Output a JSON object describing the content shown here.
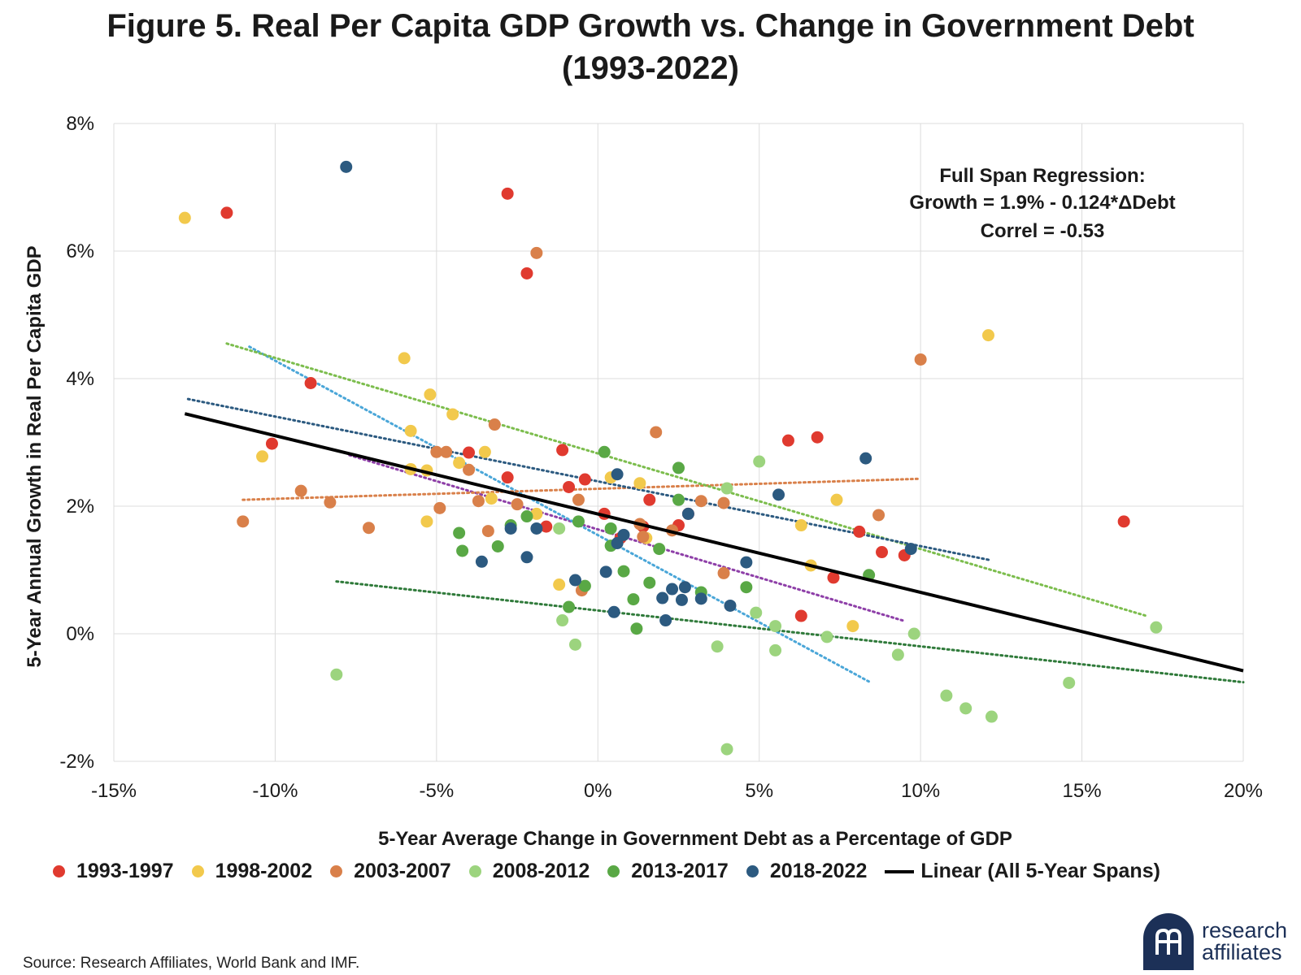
{
  "header": {
    "title_line1": "Figure 5. Real Per Capita GDP Growth vs. Change in Government Debt",
    "title_line2": "(1993-2022)"
  },
  "footer": {
    "source": "Source: Research Affiliates, World Bank and IMF.",
    "logo_line1": "research",
    "logo_line2": "affiliates"
  },
  "chart_data": {
    "type": "scatter",
    "title": "Figure 5. Real Per Capita GDP Growth vs. Change in Government Debt (1993-2022)",
    "xlabel": "5-Year Average Change in Government Debt as a Percentage of GDP",
    "ylabel": "5-Year Annual Growth in Real Per Capita GDP",
    "xlim": [
      -15,
      20
    ],
    "ylim": [
      -2,
      8
    ],
    "x_ticks": [
      -15,
      -10,
      -5,
      0,
      5,
      10,
      15,
      20
    ],
    "y_ticks": [
      -2,
      0,
      2,
      4,
      6,
      8
    ],
    "x_tick_labels": [
      "-15%",
      "-10%",
      "-5%",
      "0%",
      "5%",
      "10%",
      "15%",
      "20%"
    ],
    "y_tick_labels": [
      "-2%",
      "0%",
      "2%",
      "4%",
      "6%",
      "8%"
    ],
    "grid": true,
    "legend_position": "bottom",
    "annotation": {
      "line1": "Full Span Regression:",
      "line2": "Growth = 1.9% - 0.124*ΔDebt",
      "line3": "Correl = -0.53"
    },
    "series": [
      {
        "name": "1993-1997",
        "color": "#e03a2f",
        "points": [
          [
            -11.5,
            6.6
          ],
          [
            -2.8,
            6.9
          ],
          [
            -2.2,
            5.65
          ],
          [
            -8.9,
            3.93
          ],
          [
            -10.1,
            2.98
          ],
          [
            -4.0,
            2.84
          ],
          [
            -1.1,
            2.88
          ],
          [
            -2.8,
            2.45
          ],
          [
            -0.4,
            2.42
          ],
          [
            -0.9,
            2.3
          ],
          [
            1.6,
            2.1
          ],
          [
            0.2,
            1.88
          ],
          [
            1.4,
            1.68
          ],
          [
            2.5,
            1.7
          ],
          [
            2.8,
            1.88
          ],
          [
            -1.6,
            1.68
          ],
          [
            0.7,
            1.5
          ],
          [
            5.9,
            3.03
          ],
          [
            6.8,
            3.08
          ],
          [
            8.1,
            1.6
          ],
          [
            8.8,
            1.28
          ],
          [
            9.5,
            1.23
          ],
          [
            7.3,
            0.88
          ],
          [
            6.3,
            0.28
          ],
          [
            16.3,
            1.76
          ]
        ]
      },
      {
        "name": "1998-2002",
        "color": "#f2c94c",
        "points": [
          [
            -12.8,
            6.52
          ],
          [
            -6.0,
            4.32
          ],
          [
            -5.2,
            3.75
          ],
          [
            -4.5,
            3.44
          ],
          [
            -5.8,
            3.18
          ],
          [
            -3.5,
            2.85
          ],
          [
            -10.4,
            2.78
          ],
          [
            -5.8,
            2.58
          ],
          [
            -5.3,
            2.56
          ],
          [
            -4.3,
            2.68
          ],
          [
            -3.3,
            2.12
          ],
          [
            -1.9,
            1.88
          ],
          [
            -5.3,
            1.76
          ],
          [
            0.4,
            2.45
          ],
          [
            1.3,
            2.36
          ],
          [
            1.5,
            1.5
          ],
          [
            6.3,
            1.7
          ],
          [
            7.4,
            2.1
          ],
          [
            6.6,
            1.07
          ],
          [
            7.9,
            0.12
          ],
          [
            -1.2,
            0.77
          ],
          [
            12.1,
            4.68
          ]
        ]
      },
      {
        "name": "2003-2007",
        "color": "#d9804a",
        "points": [
          [
            -1.9,
            5.97
          ],
          [
            -3.2,
            3.28
          ],
          [
            -4.7,
            2.85
          ],
          [
            -5.0,
            2.85
          ],
          [
            -4.0,
            2.57
          ],
          [
            -9.2,
            2.24
          ],
          [
            -8.3,
            2.06
          ],
          [
            -3.7,
            2.08
          ],
          [
            -2.5,
            2.03
          ],
          [
            -0.6,
            2.1
          ],
          [
            -11.0,
            1.76
          ],
          [
            -7.1,
            1.66
          ],
          [
            -4.9,
            1.97
          ],
          [
            -3.4,
            1.61
          ],
          [
            1.3,
            1.72
          ],
          [
            1.4,
            1.52
          ],
          [
            2.3,
            1.62
          ],
          [
            1.8,
            3.16
          ],
          [
            3.2,
            2.08
          ],
          [
            3.9,
            2.05
          ],
          [
            3.9,
            0.95
          ],
          [
            -0.5,
            0.68
          ],
          [
            8.7,
            1.86
          ],
          [
            10.0,
            4.3
          ]
        ]
      },
      {
        "name": "2008-2012",
        "color": "#9cd47e",
        "points": [
          [
            -8.1,
            -0.64
          ],
          [
            -1.2,
            1.65
          ],
          [
            -1.1,
            0.21
          ],
          [
            -0.7,
            -0.17
          ],
          [
            4.0,
            2.28
          ],
          [
            5.0,
            2.7
          ],
          [
            4.9,
            0.33
          ],
          [
            5.5,
            0.12
          ],
          [
            3.7,
            -0.2
          ],
          [
            5.5,
            -0.26
          ],
          [
            7.1,
            -0.05
          ],
          [
            9.8,
            0.0
          ],
          [
            9.3,
            -0.33
          ],
          [
            10.8,
            -0.97
          ],
          [
            11.4,
            -1.17
          ],
          [
            12.2,
            -1.3
          ],
          [
            14.6,
            -0.77
          ],
          [
            17.3,
            0.1
          ],
          [
            4.0,
            -1.81
          ]
        ]
      },
      {
        "name": "2013-2017",
        "color": "#59a845",
        "points": [
          [
            0.2,
            2.85
          ],
          [
            2.5,
            2.6
          ],
          [
            2.5,
            2.1
          ],
          [
            -0.6,
            1.76
          ],
          [
            0.4,
            1.65
          ],
          [
            0.4,
            1.38
          ],
          [
            -2.2,
            1.84
          ],
          [
            -2.7,
            1.7
          ],
          [
            -4.3,
            1.58
          ],
          [
            -4.2,
            1.3
          ],
          [
            -3.1,
            1.37
          ],
          [
            1.9,
            1.33
          ],
          [
            0.8,
            0.98
          ],
          [
            1.6,
            0.8
          ],
          [
            -0.4,
            0.75
          ],
          [
            -0.9,
            0.42
          ],
          [
            1.1,
            0.54
          ],
          [
            1.2,
            0.08
          ],
          [
            3.2,
            0.65
          ],
          [
            4.6,
            0.73
          ],
          [
            8.4,
            0.92
          ]
        ]
      },
      {
        "name": "2018-2022",
        "color": "#2c5a80",
        "points": [
          [
            -7.8,
            7.32
          ],
          [
            0.6,
            2.5
          ],
          [
            5.6,
            2.18
          ],
          [
            8.3,
            2.75
          ],
          [
            2.8,
            1.88
          ],
          [
            0.8,
            1.55
          ],
          [
            0.6,
            1.42
          ],
          [
            -1.9,
            1.65
          ],
          [
            -2.7,
            1.65
          ],
          [
            -3.6,
            1.13
          ],
          [
            -2.2,
            1.2
          ],
          [
            -0.7,
            0.84
          ],
          [
            0.25,
            0.97
          ],
          [
            0.5,
            0.34
          ],
          [
            2.3,
            0.7
          ],
          [
            2.7,
            0.73
          ],
          [
            2.0,
            0.56
          ],
          [
            2.6,
            0.53
          ],
          [
            3.2,
            0.55
          ],
          [
            4.1,
            0.44
          ],
          [
            2.1,
            0.21
          ],
          [
            4.6,
            1.12
          ],
          [
            9.7,
            1.33
          ]
        ]
      }
    ],
    "trendlines": [
      {
        "series": "1993-1997",
        "color": "#8e3fa8",
        "x": [
          -7.7,
          9.5
        ],
        "y": [
          2.8,
          0.2
        ]
      },
      {
        "series": "1998-2002",
        "color": "#4aa6d8",
        "x": [
          -10.8,
          8.4
        ],
        "y": [
          4.5,
          -0.75
        ]
      },
      {
        "series": "2003-2007",
        "color": "#d9804a",
        "x": [
          -11.0,
          10.0
        ],
        "y": [
          2.1,
          2.43
        ]
      },
      {
        "series": "2008-2012",
        "color": "#7cbd4d",
        "x": [
          -11.5,
          17.0
        ],
        "y": [
          4.55,
          0.28
        ]
      },
      {
        "series": "2013-2017",
        "color": "#2f7a3a",
        "x": [
          -8.1,
          20.0
        ],
        "y": [
          0.82,
          -0.76
        ]
      },
      {
        "series": "2018-2022",
        "color": "#2c5a80",
        "x": [
          -12.7,
          12.2
        ],
        "y": [
          3.68,
          1.15
        ]
      }
    ],
    "regression_line": {
      "name": "Linear (All 5-Year Spans)",
      "color": "#000000",
      "x": [
        -12.8,
        20.0
      ],
      "y": [
        3.45,
        -0.58
      ]
    }
  }
}
